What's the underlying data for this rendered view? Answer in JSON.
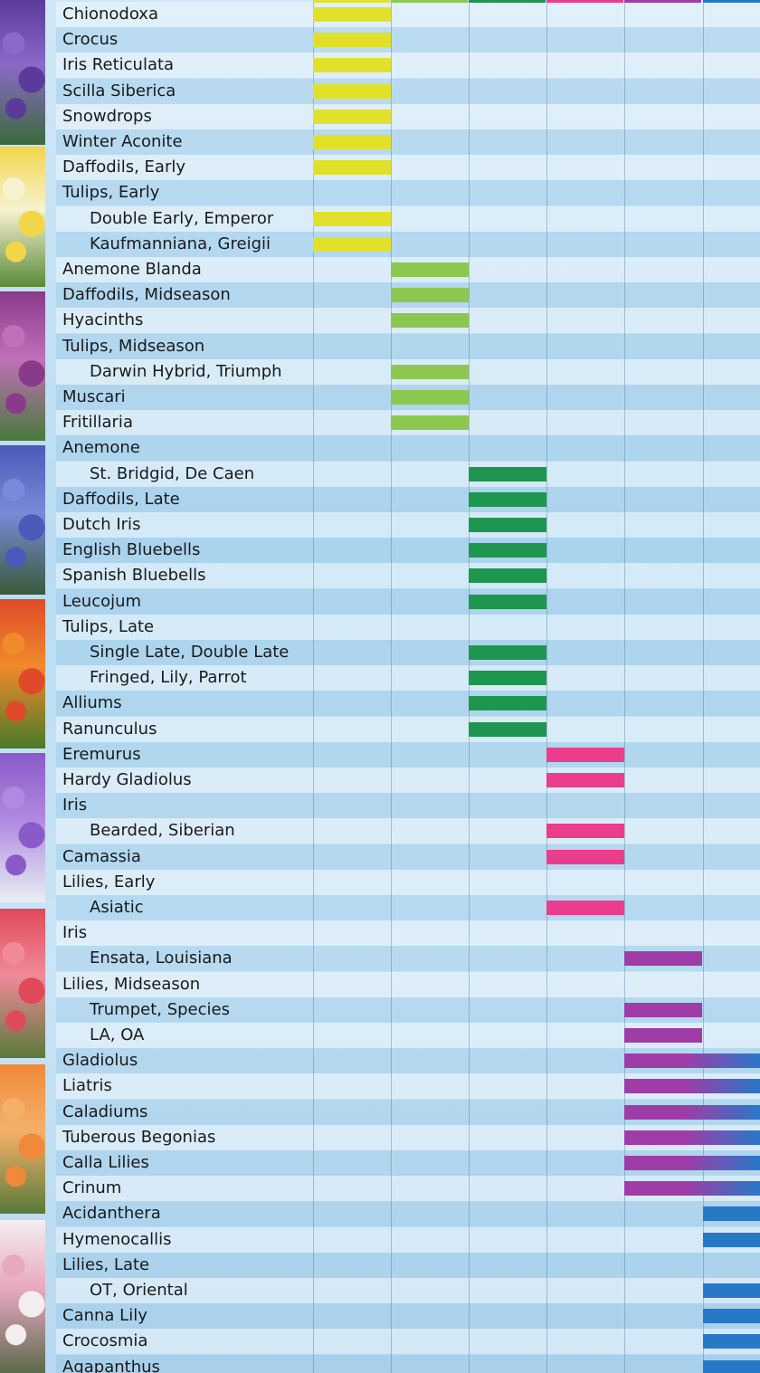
{
  "chart_data": {
    "type": "bar",
    "columns": 6,
    "colors": [
      "#e1e12c",
      "#8cc850",
      "#1f9650",
      "#ec3c8c",
      "#a03ca8",
      "#2878c8"
    ],
    "rows": [
      {
        "label": "Chionodoxa",
        "indent": 0,
        "col": 0
      },
      {
        "label": "Crocus",
        "indent": 0,
        "col": 0
      },
      {
        "label": "Iris Reticulata",
        "indent": 0,
        "col": 0
      },
      {
        "label": "Scilla Siberica",
        "indent": 0,
        "col": 0
      },
      {
        "label": "Snowdrops",
        "indent": 0,
        "col": 0
      },
      {
        "label": "Winter Aconite",
        "indent": 0,
        "col": 0
      },
      {
        "label": "Daffodils, Early",
        "indent": 0,
        "col": 0
      },
      {
        "label": "Tulips, Early",
        "indent": 0,
        "col": null
      },
      {
        "label": "Double Early, Emperor",
        "indent": 1,
        "col": 0
      },
      {
        "label": "Kaufmanniana, Greigii",
        "indent": 1,
        "col": 0
      },
      {
        "label": "Anemone Blanda",
        "indent": 0,
        "col": 1
      },
      {
        "label": "Daffodils, Midseason",
        "indent": 0,
        "col": 1
      },
      {
        "label": "Hyacinths",
        "indent": 0,
        "col": 1
      },
      {
        "label": "Tulips, Midseason",
        "indent": 0,
        "col": null
      },
      {
        "label": "Darwin Hybrid, Triumph",
        "indent": 1,
        "col": 1
      },
      {
        "label": "Muscari",
        "indent": 0,
        "col": 1
      },
      {
        "label": "Fritillaria",
        "indent": 0,
        "col": 1
      },
      {
        "label": "Anemone",
        "indent": 0,
        "col": null
      },
      {
        "label": "St. Bridgid, De Caen",
        "indent": 1,
        "col": 2
      },
      {
        "label": "Daffodils, Late",
        "indent": 0,
        "col": 2
      },
      {
        "label": "Dutch Iris",
        "indent": 0,
        "col": 2
      },
      {
        "label": "English Bluebells",
        "indent": 0,
        "col": 2
      },
      {
        "label": "Spanish Bluebells",
        "indent": 0,
        "col": 2
      },
      {
        "label": "Leucojum",
        "indent": 0,
        "col": 2
      },
      {
        "label": "Tulips, Late",
        "indent": 0,
        "col": null
      },
      {
        "label": "Single Late, Double Late",
        "indent": 1,
        "col": 2
      },
      {
        "label": "Fringed, Lily, Parrot",
        "indent": 1,
        "col": 2
      },
      {
        "label": "Alliums",
        "indent": 0,
        "col": 2
      },
      {
        "label": "Ranunculus",
        "indent": 0,
        "col": 2
      },
      {
        "label": "Eremurus",
        "indent": 0,
        "col": 3
      },
      {
        "label": "Hardy Gladiolus",
        "indent": 0,
        "col": 3
      },
      {
        "label": "Iris",
        "indent": 0,
        "col": null
      },
      {
        "label": "Bearded, Siberian",
        "indent": 1,
        "col": 3
      },
      {
        "label": "Camassia",
        "indent": 0,
        "col": 3
      },
      {
        "label": "Lilies, Early",
        "indent": 0,
        "col": null
      },
      {
        "label": "Asiatic",
        "indent": 1,
        "col": 3
      },
      {
        "label": "Iris",
        "indent": 0,
        "col": null
      },
      {
        "label": "Ensata, Louisiana",
        "indent": 1,
        "col": 4
      },
      {
        "label": "Lilies, Midseason",
        "indent": 0,
        "col": null
      },
      {
        "label": "Trumpet, Species",
        "indent": 1,
        "col": 4
      },
      {
        "label": "LA, OA",
        "indent": 1,
        "col": 4
      },
      {
        "label": "Gladiolus",
        "indent": 0,
        "col": 4,
        "extend": true
      },
      {
        "label": "Liatris",
        "indent": 0,
        "col": 4,
        "extend": true
      },
      {
        "label": "Caladiums",
        "indent": 0,
        "col": 4,
        "extend": true
      },
      {
        "label": "Tuberous Begonias",
        "indent": 0,
        "col": 4,
        "extend": true
      },
      {
        "label": "Calla Lilies",
        "indent": 0,
        "col": 4,
        "extend": true
      },
      {
        "label": "Crinum",
        "indent": 0,
        "col": 4,
        "extend": true
      },
      {
        "label": "Acidanthera",
        "indent": 0,
        "col": 5
      },
      {
        "label": "Hymenocallis",
        "indent": 0,
        "col": 5
      },
      {
        "label": "Lilies, Late",
        "indent": 0,
        "col": null
      },
      {
        "label": "OT, Oriental",
        "indent": 1,
        "col": 5
      },
      {
        "label": "Canna Lily",
        "indent": 0,
        "col": 5
      },
      {
        "label": "Crocosmia",
        "indent": 0,
        "col": 5
      },
      {
        "label": "Agapanthus",
        "indent": 0,
        "col": 5
      }
    ]
  },
  "photos": [
    {
      "name": "purple-iris-photo",
      "colors": [
        "#5a3a9a",
        "#8a6ac8",
        "#3a6a3a"
      ]
    },
    {
      "name": "daffodil-photo",
      "colors": [
        "#f2d64a",
        "#f7f2d0",
        "#5a8a3a"
      ]
    },
    {
      "name": "purple-tulip-photo",
      "colors": [
        "#8a3a8a",
        "#c070b8",
        "#4a7a3a"
      ]
    },
    {
      "name": "bluebell-photo",
      "colors": [
        "#4a5ab8",
        "#7a8ad8",
        "#3a5a3a"
      ]
    },
    {
      "name": "red-tulip-photo",
      "colors": [
        "#e04a2a",
        "#f08a2a",
        "#4a7a2a"
      ]
    },
    {
      "name": "allium-photo",
      "colors": [
        "#8a5ac8",
        "#b08ae0",
        "#e8eef4"
      ]
    },
    {
      "name": "dahlia-photo",
      "colors": [
        "#e04a5a",
        "#f08a9a",
        "#5a7a3a"
      ]
    },
    {
      "name": "lily-photo",
      "colors": [
        "#f08a3a",
        "#f4b06a",
        "#5a7a3a"
      ]
    },
    {
      "name": "white-flower-photo",
      "colors": [
        "#f2eef0",
        "#e8a8c0",
        "#5a6a4a"
      ]
    }
  ]
}
